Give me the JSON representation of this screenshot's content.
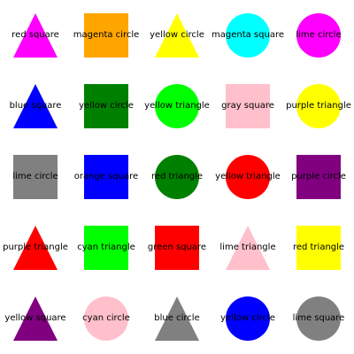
{
  "cells": [
    {
      "label": "red square",
      "shape": "triangle",
      "color": "#ff00ff"
    },
    {
      "label": "magenta circle",
      "shape": "square",
      "color": "#ffa500"
    },
    {
      "label": "yellow circle",
      "shape": "triangle",
      "color": "#ffff00"
    },
    {
      "label": "magenta square",
      "shape": "circle",
      "color": "#00ffff"
    },
    {
      "label": "lime circle",
      "shape": "circle",
      "color": "#ff00ff"
    },
    {
      "label": "blue square",
      "shape": "triangle",
      "color": "#0000ff"
    },
    {
      "label": "yellow circle",
      "shape": "square",
      "color": "#008000"
    },
    {
      "label": "yellow triangle",
      "shape": "circle",
      "color": "#00ff00"
    },
    {
      "label": "gray square",
      "shape": "square",
      "color": "#ffc0cb"
    },
    {
      "label": "purple triangle",
      "shape": "circle",
      "color": "#ffff00"
    },
    {
      "label": "lime circle",
      "shape": "square",
      "color": "#808080"
    },
    {
      "label": "orange square",
      "shape": "square",
      "color": "#0000ff"
    },
    {
      "label": "red triangle",
      "shape": "circle",
      "color": "#008000"
    },
    {
      "label": "yellow triangle",
      "shape": "circle",
      "color": "#ff0000"
    },
    {
      "label": "purple circle",
      "shape": "square",
      "color": "#800080"
    },
    {
      "label": "purple triangle",
      "shape": "triangle",
      "color": "#ff0000"
    },
    {
      "label": "cyan triangle",
      "shape": "square",
      "color": "#00ff00"
    },
    {
      "label": "green square",
      "shape": "square",
      "color": "#ff0000"
    },
    {
      "label": "lime triangle",
      "shape": "triangle",
      "color": "#ffc0cb"
    },
    {
      "label": "red triangle",
      "shape": "square",
      "color": "#ffff00"
    },
    {
      "label": "yellow square",
      "shape": "triangle",
      "color": "#800080"
    },
    {
      "label": "cyan circle",
      "shape": "circle",
      "color": "#ffc0cb"
    },
    {
      "label": "blue circle",
      "shape": "triangle",
      "color": "#808080"
    },
    {
      "label": "yellow circle",
      "shape": "circle",
      "color": "#0000ff"
    },
    {
      "label": "lime square",
      "shape": "circle",
      "color": "#808080"
    }
  ]
}
